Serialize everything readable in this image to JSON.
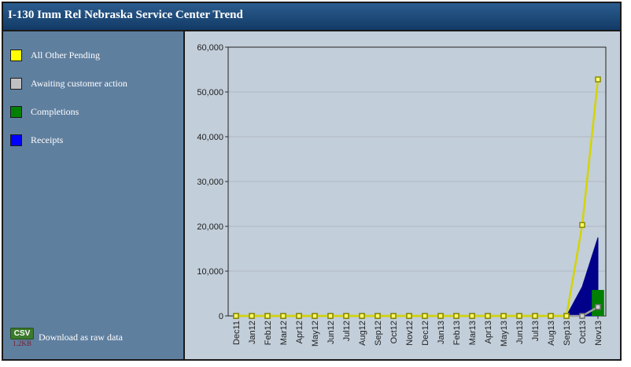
{
  "title": "I-130 Imm Rel Nebraska Service Center Trend",
  "legend": [
    {
      "label": "All Other Pending",
      "color": "#ffff00"
    },
    {
      "label": "Awaiting customer action",
      "color": "#c0c0c0"
    },
    {
      "label": "Completions",
      "color": "#008000"
    },
    {
      "label": "Receipts",
      "color": "#0000ff"
    }
  ],
  "download": {
    "badge": "CSV",
    "size": "1.2KB",
    "label": "Download as raw data"
  },
  "chart_data": {
    "type": "line",
    "categories": [
      "Dec11",
      "Jan12",
      "Feb12",
      "Mar12",
      "Apr12",
      "May12",
      "Jun12",
      "Jul12",
      "Aug12",
      "Sep12",
      "Oct12",
      "Nov12",
      "Dec12",
      "Jan13",
      "Feb13",
      "Mar13",
      "Apr13",
      "May13",
      "Jun13",
      "Jul13",
      "Aug13",
      "Sep13",
      "Oct13",
      "Nov13"
    ],
    "ylim": [
      0,
      60000
    ],
    "yticks": [
      "0",
      "10,000",
      "20,000",
      "30,000",
      "40,000",
      "50,000",
      "60,000"
    ],
    "ytick_values": [
      0,
      10000,
      20000,
      30000,
      40000,
      50000,
      60000
    ],
    "grid": true,
    "series": [
      {
        "name": "All Other Pending",
        "kind": "line",
        "color": "#d4d400",
        "values": [
          0,
          0,
          0,
          0,
          0,
          0,
          0,
          0,
          0,
          0,
          0,
          0,
          0,
          0,
          0,
          0,
          0,
          0,
          0,
          0,
          0,
          0,
          20300,
          52800
        ]
      },
      {
        "name": "Awaiting customer action",
        "kind": "line",
        "color": "#a0a0a0",
        "values": [
          0,
          0,
          0,
          0,
          0,
          0,
          0,
          0,
          0,
          0,
          0,
          0,
          0,
          0,
          0,
          0,
          0,
          0,
          0,
          0,
          0,
          0,
          0,
          2000
        ]
      },
      {
        "name": "Completions",
        "kind": "bar",
        "color": "#008000",
        "values": [
          0,
          0,
          0,
          0,
          0,
          0,
          0,
          0,
          0,
          0,
          0,
          0,
          0,
          0,
          0,
          0,
          0,
          0,
          0,
          0,
          0,
          0,
          0,
          5800
        ]
      },
      {
        "name": "Receipts",
        "kind": "area",
        "color": "#00008b",
        "values": [
          0,
          0,
          0,
          0,
          0,
          0,
          0,
          0,
          0,
          0,
          0,
          0,
          0,
          0,
          0,
          0,
          0,
          0,
          0,
          0,
          0,
          0,
          6500,
          17500
        ]
      }
    ]
  }
}
